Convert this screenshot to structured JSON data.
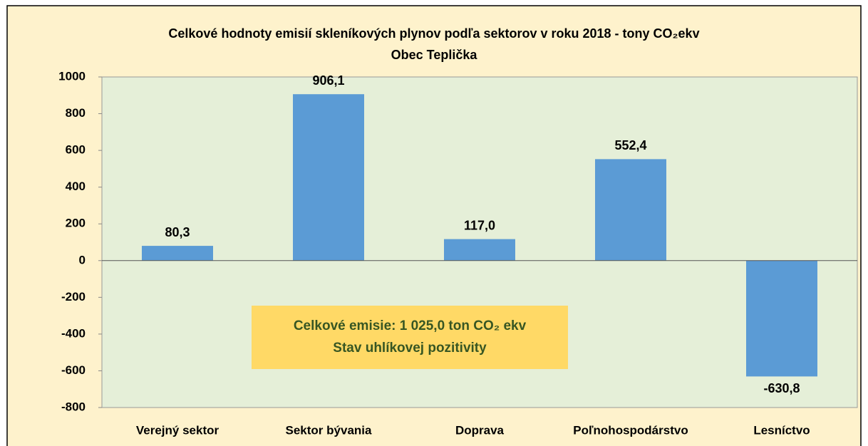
{
  "chart_data": {
    "type": "bar",
    "title": "Celkové hodnoty emisií skleníkových plynov podľa sektorov v roku 2018 - tony CO₂ekv",
    "subtitle": "Obec Teplička",
    "categories": [
      "Verejný sektor",
      "Sektor bývania",
      "Doprava",
      "Poľnohospodárstvo",
      "Lesníctvo"
    ],
    "values": [
      80.3,
      906.1,
      117.0,
      552.4,
      -630.8
    ],
    "value_labels": [
      "80,3",
      "906,1",
      "117,0",
      "552,4",
      "-630,8"
    ],
    "color": "#5b9bd5",
    "ylim": [
      -800,
      1000
    ],
    "yticks": [
      -800,
      -600,
      -400,
      -200,
      0,
      200,
      400,
      600,
      800,
      1000
    ],
    "grid": false,
    "annotations": [
      "Celkové emisie: 1 025,0 ton CO₂ ekv",
      "Stav uhlíkovej pozitivity"
    ]
  }
}
